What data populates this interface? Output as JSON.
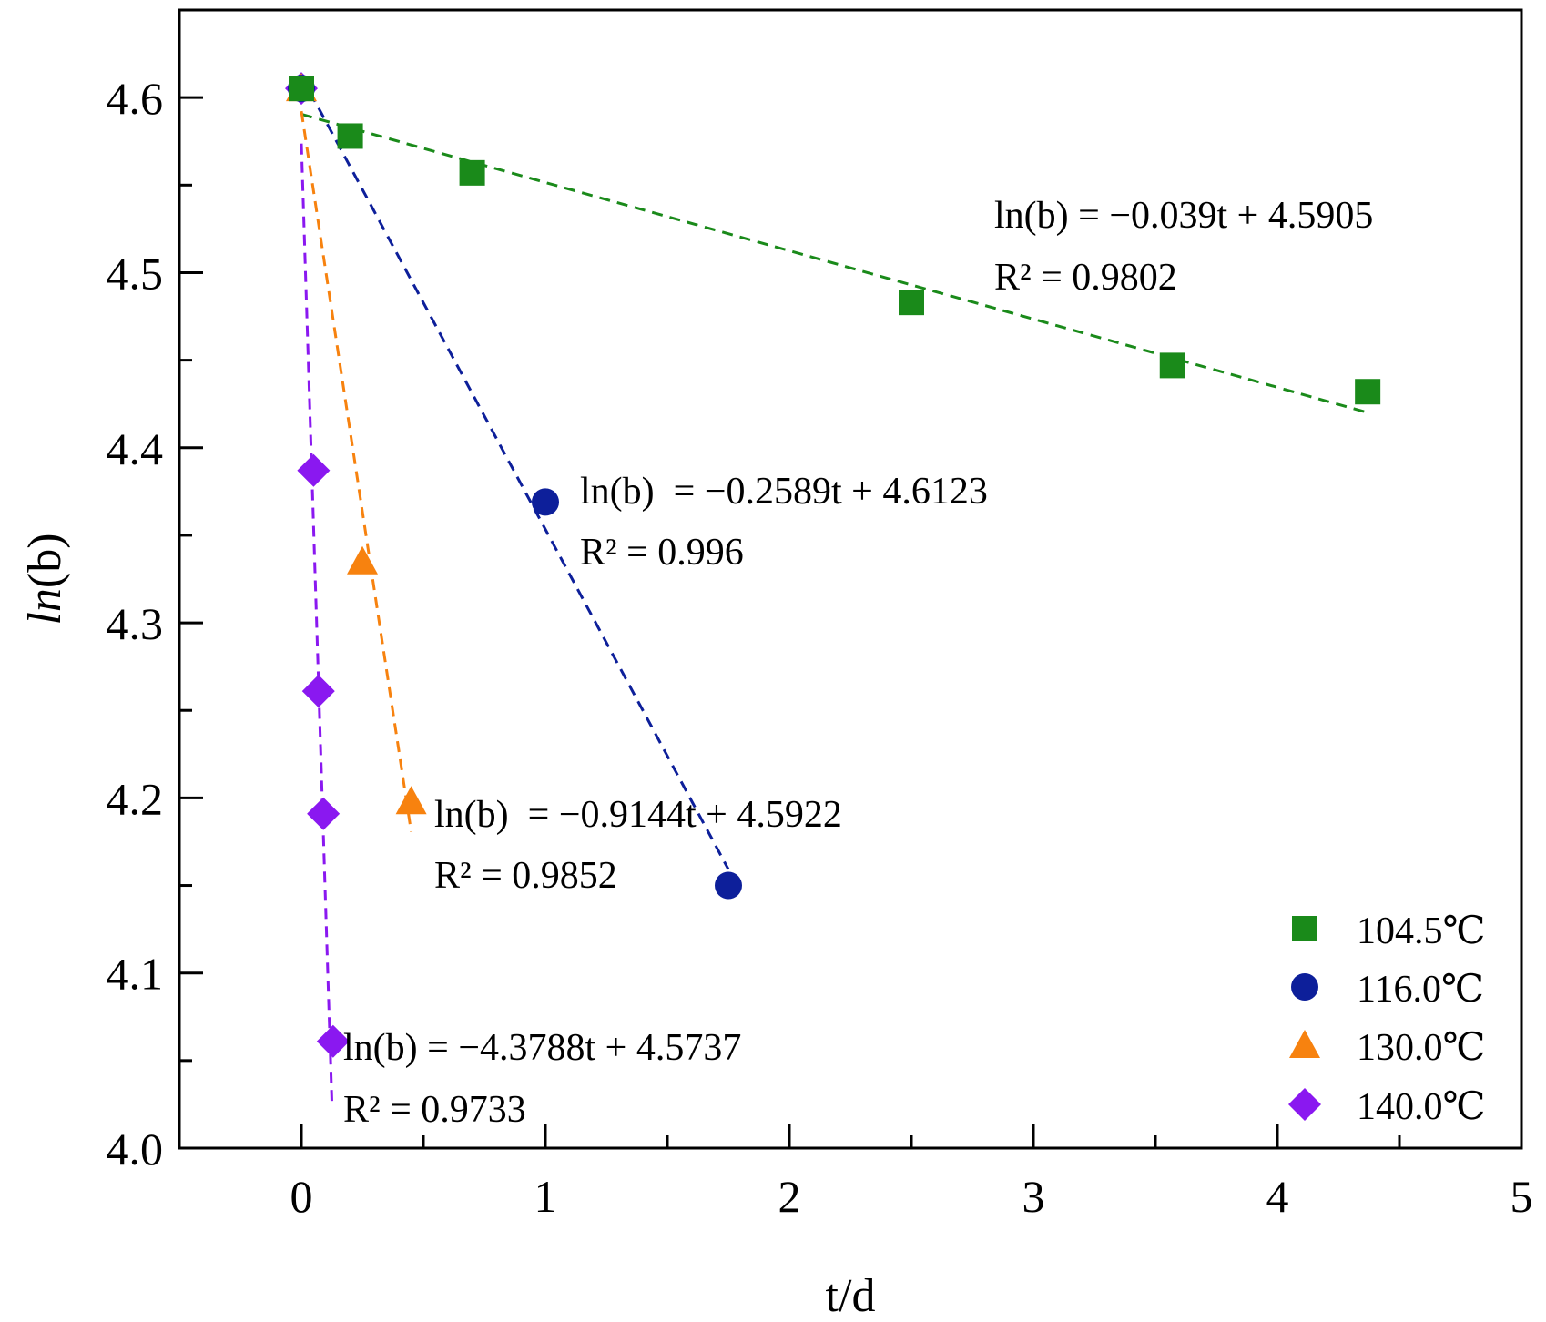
{
  "chart_data": {
    "type": "scatter",
    "xlabel": "t/d",
    "ylabel_italic": "ln",
    "ylabel_rest": "(b)",
    "xlim": [
      -0.5,
      5
    ],
    "ylim": [
      4.0,
      4.65
    ],
    "x_ticks": [
      0,
      1,
      2,
      3,
      4,
      5
    ],
    "x_minor_ticks": [
      -0.5,
      0.5,
      1.5,
      2.5,
      3.5,
      4.5
    ],
    "y_ticks": [
      4.0,
      4.1,
      4.2,
      4.3,
      4.4,
      4.5,
      4.6
    ],
    "y_minor_ticks": [
      4.05,
      4.15,
      4.25,
      4.35,
      4.45,
      4.55
    ],
    "x_tick_labels": [
      "0",
      "1",
      "2",
      "3",
      "4",
      "5"
    ],
    "y_tick_labels": [
      "4.0",
      "4.1",
      "4.2",
      "4.3",
      "4.4",
      "4.5",
      "4.6"
    ],
    "legend_position": "bottom-right",
    "series": [
      {
        "name": "104.5℃",
        "marker": "square",
        "color": "#1a8a1a",
        "x": [
          0,
          0.2,
          0.7,
          2.5,
          3.57,
          4.37
        ],
        "y": [
          4.6052,
          4.578,
          4.557,
          4.483,
          4.447,
          4.432
        ],
        "fit": {
          "slope": -0.039,
          "intercept": 4.5905,
          "x_range": [
            0,
            4.37
          ]
        },
        "equation": "ln(b) = −0.039t + 4.5905",
        "r2": "R² = 0.9802"
      },
      {
        "name": "116.0℃",
        "marker": "circle",
        "color": "#0d1f9a",
        "x": [
          0,
          1.0,
          1.75
        ],
        "y": [
          4.6052,
          4.369,
          4.15
        ],
        "fit": {
          "slope": -0.2589,
          "intercept": 4.6123,
          "x_range": [
            0,
            1.75
          ]
        },
        "equation": "ln(b)  = −0.2589t + 4.6123",
        "r2": "R² = 0.996"
      },
      {
        "name": "130.0℃",
        "marker": "triangle",
        "color": "#f7820f",
        "x": [
          0,
          0.25,
          0.45
        ],
        "y": [
          4.6052,
          4.335,
          4.198
        ],
        "fit": {
          "slope": -0.9144,
          "intercept": 4.5922,
          "x_range": [
            0,
            0.45
          ]
        },
        "equation": "ln(b)  = −0.9144t + 4.5922",
        "r2": "R² = 0.9852"
      },
      {
        "name": "140.0℃",
        "marker": "diamond",
        "color": "#8a18f0",
        "x": [
          0,
          0.05,
          0.07,
          0.09,
          0.13
        ],
        "y": [
          4.6052,
          4.387,
          4.261,
          4.191,
          4.061
        ],
        "fit": {
          "slope": -4.3788,
          "intercept": 4.5737,
          "x_range": [
            0,
            0.125
          ]
        },
        "equation": "ln(b) = −4.3788t + 4.5737",
        "r2": "R² = 0.9733"
      }
    ]
  }
}
